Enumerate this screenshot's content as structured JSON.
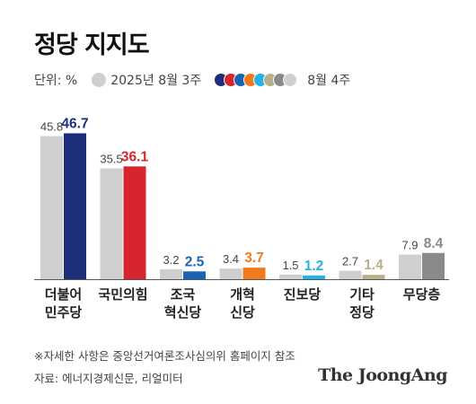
{
  "chart_data": {
    "type": "bar",
    "title": "정당 지지도",
    "unit_label": "단위: %",
    "categories": [
      [
        "더불어",
        "민주당"
      ],
      [
        "국민의힘"
      ],
      [
        "조국",
        "혁신당"
      ],
      [
        "개혁",
        "신당"
      ],
      [
        "진보당"
      ],
      [
        "기타",
        "정당"
      ],
      [
        "무당층"
      ]
    ],
    "series": [
      {
        "name": "2025년 8월 3주",
        "values": [
          45.8,
          35.5,
          3.2,
          3.4,
          1.5,
          2.7,
          7.9
        ],
        "colors": [
          "#cfcfcf"
        ]
      },
      {
        "name": "8월 4주",
        "values": [
          46.7,
          36.1,
          2.5,
          3.7,
          1.2,
          1.4,
          8.4
        ],
        "colors": [
          "#1f2e7a",
          "#d8252d",
          "#1a63b5",
          "#f07a1c",
          "#27b2e6",
          "#b8b08a",
          "#8a8a8a"
        ]
      }
    ],
    "ylim": [
      0,
      50
    ],
    "grid": false,
    "legend": "top-left"
  },
  "footer": {
    "note": "※자세한 사항은 중앙선거여론조사심의위 홈페이지 참조",
    "source": "자료: 에너지경제신문, 리얼미터",
    "logo": "The JoongAng"
  }
}
